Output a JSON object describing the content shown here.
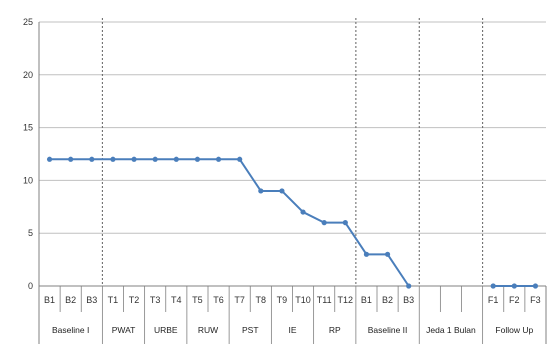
{
  "chart_data": {
    "type": "line",
    "title": "",
    "xlabel": "",
    "ylabel": "",
    "ylim": [
      0,
      25
    ],
    "yticks": [
      0,
      5,
      10,
      15,
      20,
      25
    ],
    "grid": true,
    "colors": {
      "line": "#4a7ebb",
      "grid": "#c0c0c0",
      "axis": "#808080",
      "divider": "#606060"
    },
    "categories": [
      "B1",
      "B2",
      "B3",
      "T1",
      "T2",
      "T3",
      "T4",
      "T5",
      "T6",
      "T7",
      "T8",
      "T9",
      "T10",
      "T11",
      "T12",
      "B1",
      "B2",
      "B3",
      "",
      "",
      "",
      "F1",
      "F2",
      "F3"
    ],
    "series": [
      {
        "values": [
          12,
          12,
          12,
          12,
          12,
          12,
          12,
          12,
          12,
          12,
          9,
          9,
          7,
          6,
          6,
          3,
          3,
          0,
          null,
          null,
          null,
          0,
          0,
          0
        ]
      }
    ],
    "phases": [
      {
        "label": "Baseline I",
        "start": 0,
        "end": 2,
        "divider_after": true
      },
      {
        "label": "PWAT",
        "start": 3,
        "end": 4,
        "divider_after": false
      },
      {
        "label": "URBE",
        "start": 5,
        "end": 6,
        "divider_after": false
      },
      {
        "label": "RUW",
        "start": 7,
        "end": 8,
        "divider_after": false
      },
      {
        "label": "PST",
        "start": 9,
        "end": 10,
        "divider_after": false
      },
      {
        "label": "IE",
        "start": 11,
        "end": 12,
        "divider_after": false
      },
      {
        "label": "RP",
        "start": 13,
        "end": 14,
        "divider_after": true
      },
      {
        "label": "Baseline II",
        "start": 15,
        "end": 17,
        "divider_after": true
      },
      {
        "label": "Jeda 1 Bulan",
        "start": 18,
        "end": 20,
        "divider_after": true
      },
      {
        "label": "Follow Up",
        "start": 21,
        "end": 23,
        "divider_after": false
      }
    ]
  }
}
